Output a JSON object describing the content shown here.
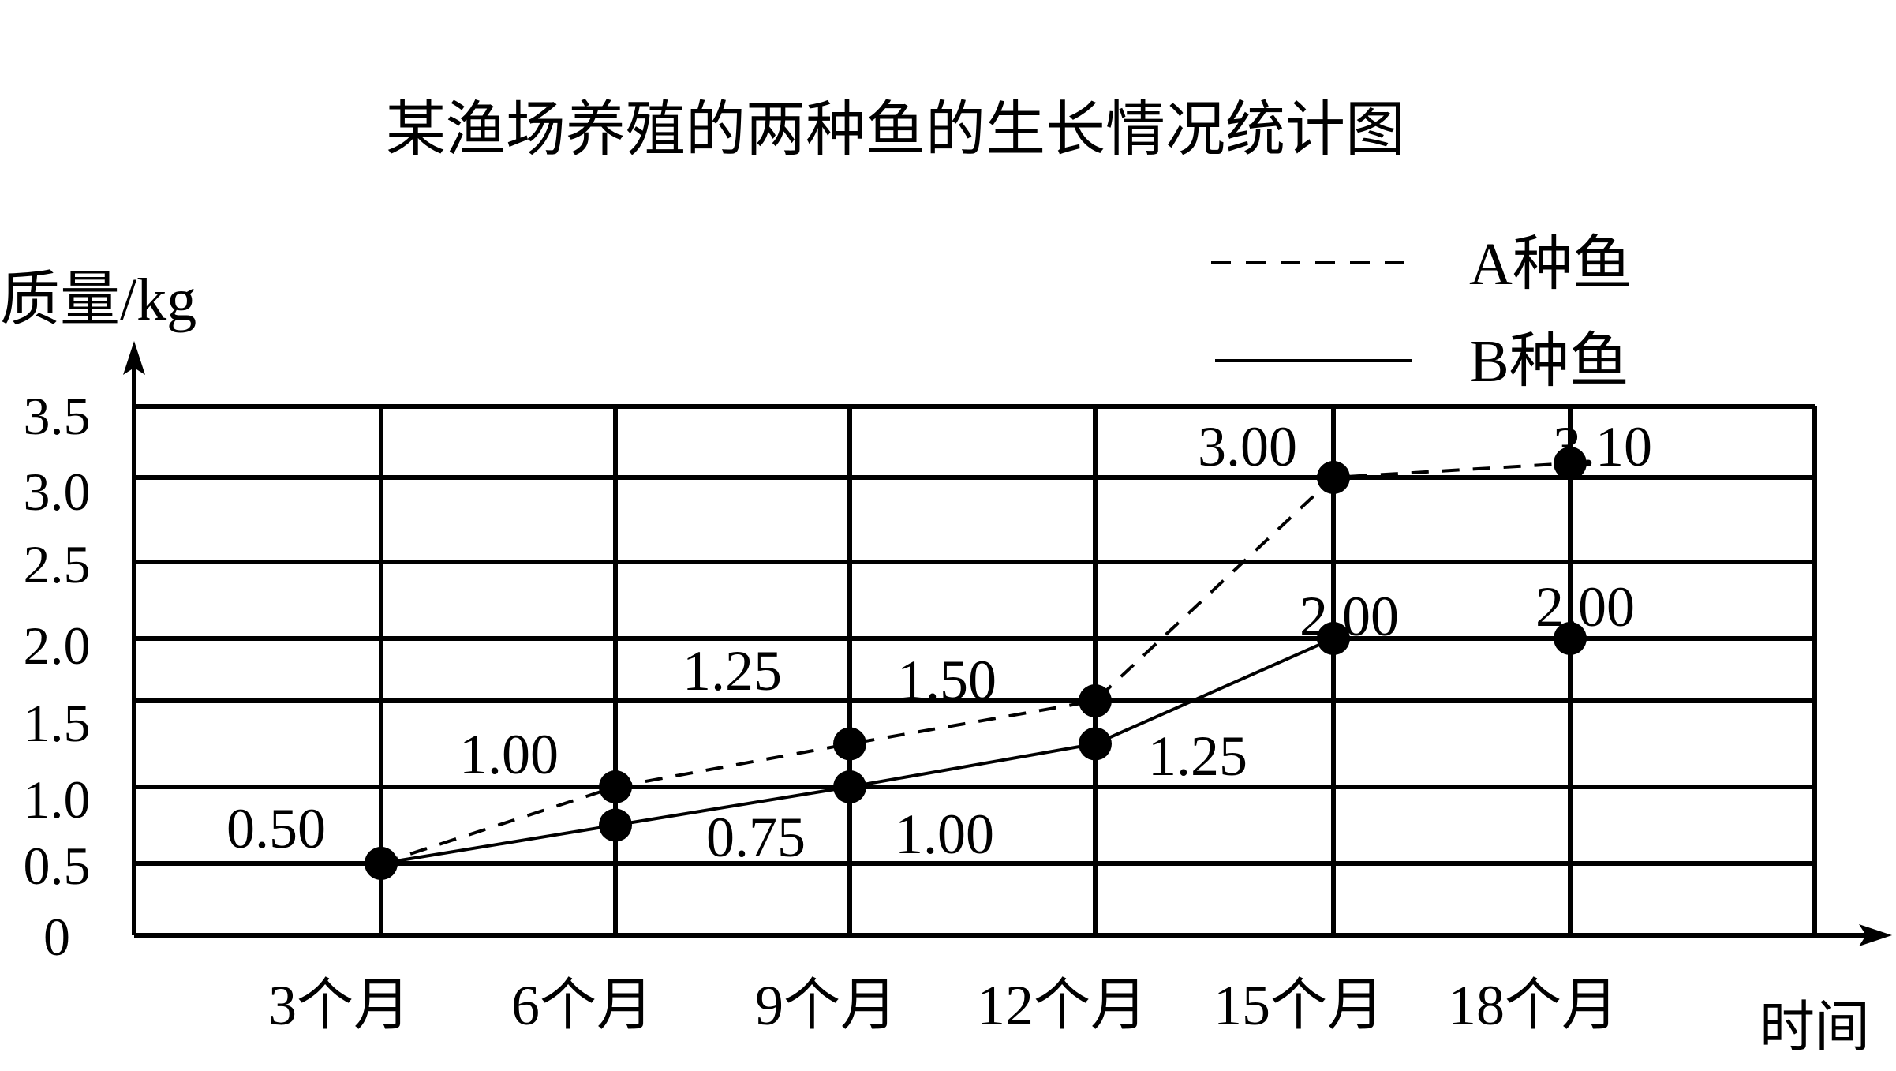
{
  "chart_data": {
    "type": "line",
    "title": "某渔场养殖的两种鱼的生长情况统计图",
    "ylabel": "质量/kg",
    "xlabel": "时间",
    "categories": [
      "3个月",
      "6个月",
      "9个月",
      "12个月",
      "15个月",
      "18个月"
    ],
    "y_ticks": [
      "0",
      "0.5",
      "1.0",
      "1.5",
      "2.0",
      "2.5",
      "3.0",
      "3.5"
    ],
    "ylim": [
      0,
      3.5
    ],
    "grid": true,
    "legend_position": "top-right",
    "series": [
      {
        "name": "A种鱼",
        "style": "dashed",
        "values": [
          0.5,
          1.0,
          1.25,
          1.5,
          3.0,
          3.1
        ],
        "labels": [
          "0.50",
          "1.00",
          "1.25",
          "1.50",
          "3.00",
          "3.10"
        ]
      },
      {
        "name": "B种鱼",
        "style": "solid",
        "values": [
          0.5,
          0.75,
          1.0,
          1.25,
          2.0,
          2.0
        ],
        "labels": [
          "",
          "0.75",
          "1.00",
          "1.25",
          "2.00",
          "2.00"
        ]
      }
    ]
  }
}
